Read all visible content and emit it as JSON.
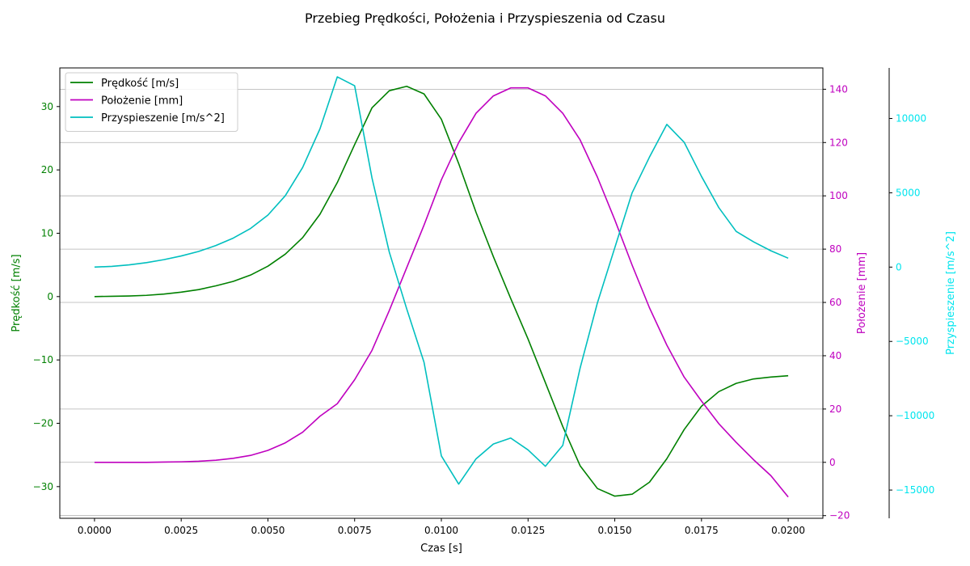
{
  "chart_data": {
    "type": "line",
    "title": "Przebieg Prędkości, Położenia i Przyspieszenia od Czasu",
    "xlabel": "Czas [s]",
    "xlim": [
      -0.001,
      0.021
    ],
    "xticks": [
      0.0,
      0.0025,
      0.005,
      0.0075,
      0.01,
      0.0125,
      0.015,
      0.0175,
      0.02
    ],
    "xtick_labels": [
      "0.0000",
      "0.0025",
      "0.0050",
      "0.0075",
      "0.0100",
      "0.0125",
      "0.0150",
      "0.0175",
      "0.0200"
    ],
    "grid": "horizontal lines at right-axis (Położenie) ticks",
    "legend_position": "upper-left",
    "x": [
      0.0,
      0.0005,
      0.001,
      0.0015,
      0.002,
      0.0025,
      0.003,
      0.0035,
      0.004,
      0.0045,
      0.005,
      0.0055,
      0.006,
      0.0065,
      0.007,
      0.0075,
      0.008,
      0.0085,
      0.009,
      0.0095,
      0.01,
      0.0105,
      0.011,
      0.0115,
      0.012,
      0.0125,
      0.013,
      0.0135,
      0.014,
      0.0145,
      0.015,
      0.0155,
      0.016,
      0.0165,
      0.017,
      0.0175,
      0.018,
      0.0185,
      0.019,
      0.0195,
      0.02
    ],
    "axes": [
      {
        "id": "velocity",
        "side": "left",
        "label": "Prędkość [m/s]",
        "color": "#008000",
        "ylim": [
          -35,
          36.1
        ],
        "ticks": [
          -30,
          -20,
          -10,
          0,
          10,
          20,
          30
        ],
        "tick_labels": [
          "−30",
          "−20",
          "−10",
          "0",
          "10",
          "20",
          "30"
        ]
      },
      {
        "id": "position",
        "side": "right",
        "label": "Położenie [mm]",
        "color": "#bf00bf",
        "ylim": [
          -21,
          148
        ],
        "ticks": [
          -20,
          0,
          20,
          40,
          60,
          80,
          100,
          120,
          140
        ],
        "tick_labels": [
          "−20",
          "0",
          "20",
          "40",
          "60",
          "80",
          "100",
          "120",
          "140"
        ]
      },
      {
        "id": "acceleration",
        "side": "right-offset",
        "label": "Przyspieszenie [m/s^2]",
        "color": "#00e5ee",
        "ylim": [
          -16900,
          13400
        ],
        "ticks": [
          -15000,
          -10000,
          -5000,
          0,
          5000,
          10000
        ],
        "tick_labels": [
          "−15000",
          "−10000",
          "−5000",
          "0",
          "5000",
          "10000"
        ]
      }
    ],
    "series": [
      {
        "name": "Prędkość [m/s]",
        "axis": "velocity",
        "color": "#008000",
        "values": [
          0.0,
          0.05,
          0.1,
          0.2,
          0.4,
          0.7,
          1.1,
          1.7,
          2.4,
          3.4,
          4.8,
          6.7,
          9.3,
          13.0,
          18.0,
          24.0,
          29.8,
          32.5,
          33.2,
          32.0,
          28.0,
          21.0,
          13.3,
          6.3,
          -0.3,
          -6.7,
          -13.6,
          -20.5,
          -26.7,
          -30.3,
          -31.5,
          -31.2,
          -29.3,
          -25.6,
          -21.0,
          -17.3,
          -15.0,
          -13.7,
          -13.0,
          -12.7,
          -12.5
        ]
      },
      {
        "name": "Położenie [mm]",
        "axis": "position",
        "color": "#bf00bf",
        "values": [
          0.0,
          0.0,
          0.0,
          0.0,
          0.1,
          0.2,
          0.4,
          0.8,
          1.5,
          2.6,
          4.5,
          7.3,
          11.3,
          17.3,
          22.0,
          31.0,
          42.0,
          57.0,
          73.0,
          89.0,
          106.0,
          120.0,
          131.0,
          137.5,
          140.5,
          140.5,
          137.5,
          131.0,
          121.0,
          107.0,
          91.0,
          74.0,
          58.0,
          44.0,
          32.0,
          23.0,
          14.5,
          7.5,
          1.0,
          -5.0,
          -13.0
        ]
      },
      {
        "name": "Przyspieszenie [m/s^2]",
        "axis": "acceleration",
        "color": "#00bfbf",
        "values": [
          0.0,
          50,
          150,
          300,
          500,
          750,
          1050,
          1450,
          1950,
          2600,
          3500,
          4800,
          6700,
          9300,
          12800,
          12200,
          6000,
          1000,
          -2800,
          -6400,
          -12700,
          -14600,
          -12900,
          -11900,
          -11500,
          -12300,
          -13400,
          -12000,
          -6800,
          -2400,
          1300,
          5000,
          7400,
          9600,
          8400,
          6100,
          4000,
          2400,
          1700,
          1100,
          600
        ]
      }
    ]
  }
}
